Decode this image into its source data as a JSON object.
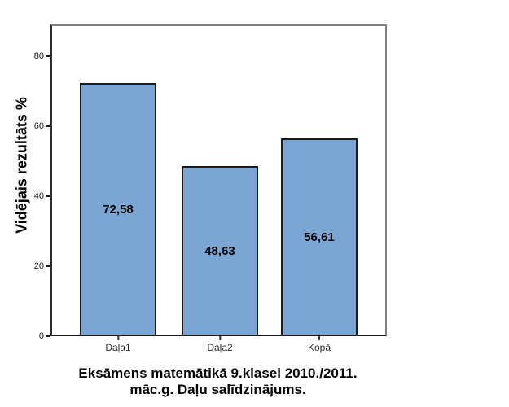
{
  "chart_data": {
    "type": "bar",
    "categories": [
      "Daļa1",
      "Daļa2",
      "Kopā"
    ],
    "values": [
      72.58,
      48.63,
      56.61
    ],
    "value_labels": [
      "72,58",
      "48,63",
      "56,61"
    ],
    "title": "Eksāmens matemātikā 9.klasei 2010./2011. māc.g. Daļu salīdzinājums.",
    "title_lines": [
      "Eksāmens matemātikā 9.klasei 2010./2011.",
      "māc.g. Daļu salīdzinājums."
    ],
    "xlabel": "",
    "ylabel": "Vidējais rezultāts %",
    "ylim": [
      0,
      89
    ],
    "yticks": [
      0,
      20,
      40,
      60,
      80
    ],
    "grid": false,
    "legend": false,
    "colors": {
      "bar_fill": "#7AA6D4",
      "bar_border": "#1a1a1a",
      "axis": "#1a1a1a",
      "frame": "#7f7f7f",
      "background": "#ffffff"
    }
  }
}
